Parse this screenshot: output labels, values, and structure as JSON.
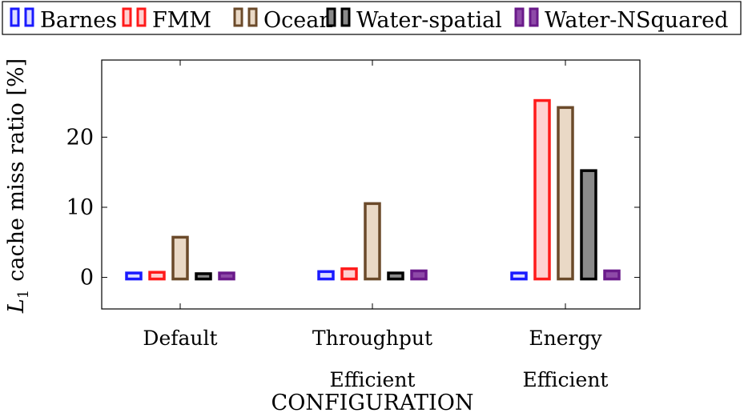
{
  "chart_data": {
    "type": "bar",
    "title": "",
    "xlabel": "CONFIGURATION",
    "ylabel_main": "L",
    "ylabel_sub": "1",
    "ylabel_rest": "cache miss ratio [%]",
    "categories": [
      {
        "line1": "Default",
        "line2": ""
      },
      {
        "line1": "Throughput",
        "line2": "Efficient"
      },
      {
        "line1": "Energy",
        "line2": "Efficient"
      }
    ],
    "ylim": [
      -4.5,
      31
    ],
    "yticks": [
      0,
      10,
      20
    ],
    "legend_position": "top",
    "series": [
      {
        "name": "Barnes",
        "stroke": "#1a1aff",
        "fill": "#dcdcff",
        "values": [
          0.4,
          0.6,
          0.4
        ]
      },
      {
        "name": "FMM",
        "stroke": "#ff1a1a",
        "fill": "#ffd0d0",
        "values": [
          0.5,
          1.0,
          25.0
        ]
      },
      {
        "name": "Ocean",
        "stroke": "#6b4a2a",
        "fill": "#ead9c6",
        "values": [
          5.5,
          10.3,
          24.0
        ]
      },
      {
        "name": "Water-spatial",
        "stroke": "#000000",
        "fill": "#8a8a8a",
        "values": [
          0.3,
          0.4,
          15.0
        ]
      },
      {
        "name": "Water-NSquared",
        "stroke": "#6a1a8a",
        "fill": "#8e4aa8",
        "values": [
          0.4,
          0.7,
          0.7
        ]
      }
    ]
  }
}
